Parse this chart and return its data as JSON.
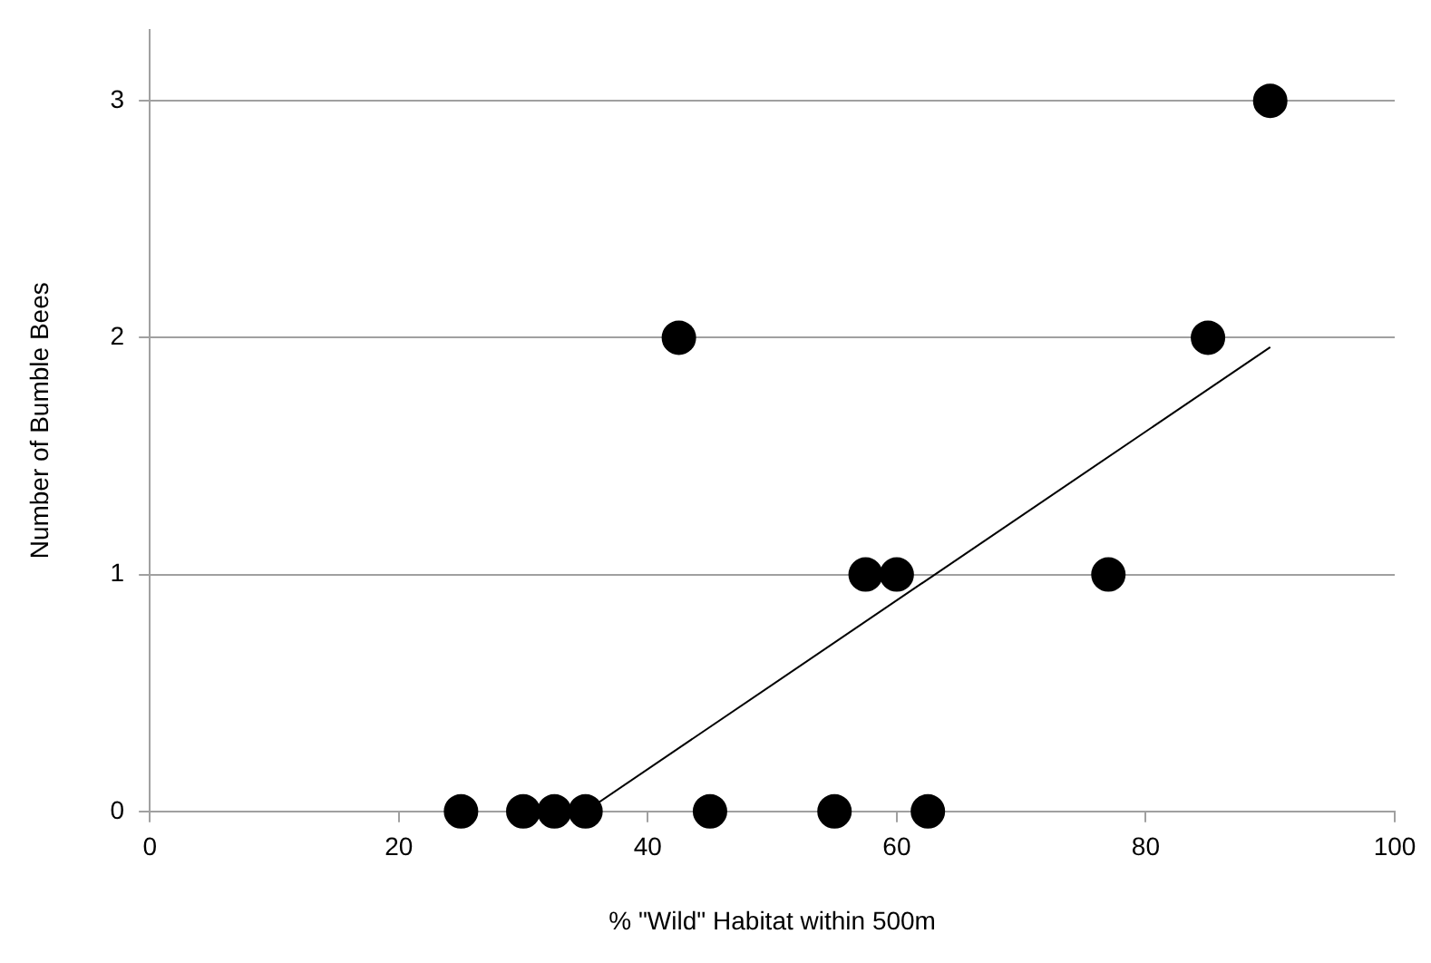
{
  "chart_data": {
    "type": "scatter",
    "xlabel": "% \"Wild\" Habitat within 500m",
    "ylabel": "Number of Bumble Bees",
    "xlim": [
      0,
      100
    ],
    "xticks": [
      0,
      20,
      40,
      60,
      80,
      100
    ],
    "ylim": [
      0,
      3.3
    ],
    "yticks": [
      0,
      1,
      2,
      3
    ],
    "grid": "y",
    "legend": false,
    "series": [
      {
        "marker": "circle",
        "color": "#000000",
        "x": [
          25,
          30,
          32.5,
          35,
          45,
          55,
          62.5,
          57.5,
          60,
          77,
          42.5,
          85,
          90
        ],
        "values": [
          0,
          0,
          0,
          0,
          0,
          0,
          0,
          1,
          1,
          1,
          2,
          2,
          3
        ]
      },
      {
        "type": "line",
        "marker": "none",
        "color": "#000000",
        "x": [
          35,
          90
        ],
        "values": [
          0,
          1.96
        ]
      }
    ]
  }
}
